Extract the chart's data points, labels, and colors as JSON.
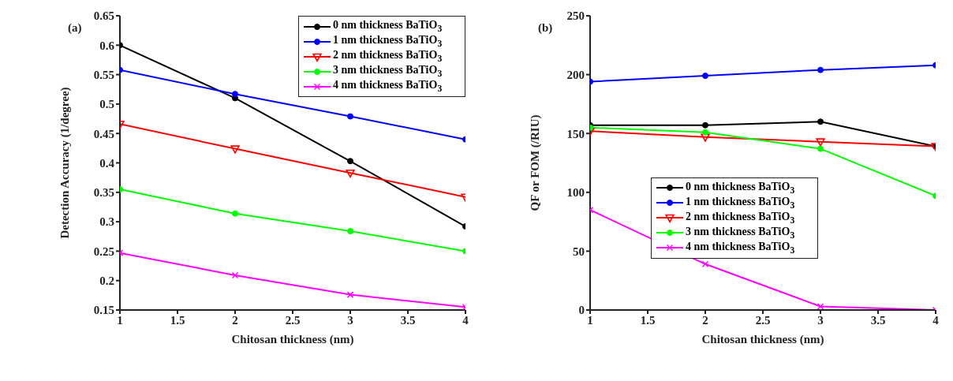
{
  "chart_data": [
    {
      "type": "line",
      "title": "(a)",
      "xlabel": "Chitosan thickness (nm)",
      "ylabel": "Detection Accuracy (1/degree)",
      "x": [
        1,
        2,
        3,
        4
      ],
      "xlim": [
        1,
        4
      ],
      "xticks": [
        1,
        1.5,
        2,
        2.5,
        3,
        3.5,
        4
      ],
      "ylim": [
        0.15,
        0.65
      ],
      "yticks": [
        0.15,
        0.2,
        0.25,
        0.3,
        0.35,
        0.4,
        0.45,
        0.5,
        0.55,
        0.6,
        0.65
      ],
      "grid": false,
      "legend": "top right",
      "line_style": "solid",
      "series": [
        {
          "name": "0 nm thickness BaTiO$_{3}$",
          "color": "#000000",
          "marker": "circle",
          "values": [
            0.6,
            0.51,
            0.403,
            0.292
          ]
        },
        {
          "name": "1 nm thickness BaTiO$_{3}$",
          "color": "#0000ff",
          "marker": "circle",
          "values": [
            0.558,
            0.517,
            0.479,
            0.44
          ]
        },
        {
          "name": "2 nm thickness BaTiO$_{3}$",
          "color": "#ff0000",
          "marker": "triangle",
          "values": [
            0.466,
            0.424,
            0.383,
            0.342
          ]
        },
        {
          "name": "3 nm thickness BaTiO$_{3}$",
          "color": "#00ff00",
          "marker": "circle",
          "values": [
            0.355,
            0.314,
            0.284,
            0.25
          ]
        },
        {
          "name": "4 nm thickness BaTiO$_{3}$",
          "color": "#ff00ff",
          "marker": "cross",
          "values": [
            0.247,
            0.209,
            0.176,
            0.155
          ]
        }
      ]
    },
    {
      "type": "line",
      "title": "(b)",
      "xlabel": "Chitosan thickness (nm)",
      "ylabel": "QF or FOM (/RIU)",
      "x": [
        1,
        2,
        3,
        4
      ],
      "xlim": [
        1,
        4
      ],
      "xticks": [
        1,
        1.5,
        2,
        2.5,
        3,
        3.5,
        4
      ],
      "ylim": [
        0,
        250
      ],
      "yticks": [
        0,
        50,
        100,
        150,
        200,
        250
      ],
      "grid": false,
      "legend": "center",
      "line_style": "solid",
      "series": [
        {
          "name": "0 nm thickness BaTiO$_{3}$",
          "color": "#000000",
          "marker": "circle",
          "values": [
            157,
            157,
            160,
            139
          ]
        },
        {
          "name": "1 nm thickness BaTiO$_{3}$",
          "color": "#0000ff",
          "marker": "circle",
          "values": [
            194,
            199,
            204,
            208
          ]
        },
        {
          "name": "2 nm thickness BaTiO$_{3}$",
          "color": "#ff0000",
          "marker": "triangle",
          "values": [
            152,
            147,
            143,
            139
          ]
        },
        {
          "name": "3 nm thickness BaTiO$_{3}$",
          "color": "#00ff00",
          "marker": "circle",
          "values": [
            155,
            151,
            137,
            97
          ]
        },
        {
          "name": "4 nm thickness BaTiO$_{3}$",
          "color": "#ff00ff",
          "marker": "cross",
          "values": [
            85,
            39,
            3,
            0
          ]
        }
      ]
    }
  ]
}
